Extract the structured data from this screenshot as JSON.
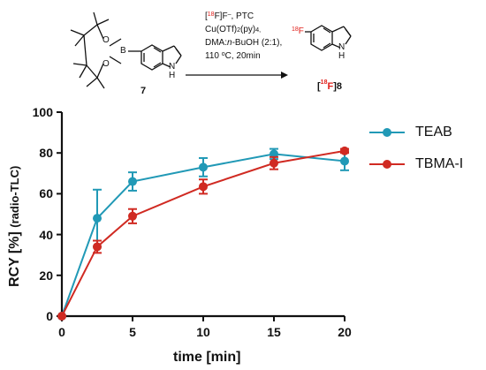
{
  "scheme": {
    "reactant_label": "7",
    "product_label_isotope": "18",
    "product_label_element": "F",
    "product_label_number": "8",
    "boron_atom": "B",
    "oxygen_atom": "O",
    "nitrogen_atom": "N",
    "hydrogen_atom": "H",
    "fluorine_mass": "18",
    "fluorine_atom": "F",
    "conditions": {
      "line1_open": "[",
      "line1_mass": "18",
      "line1_rest": "F]F",
      "line1_charge": "–",
      "line1_tail": ", PTC",
      "line2_main": "Cu(OTf)",
      "line2_sub1": "2",
      "line2_mid": "(py)",
      "line2_sub2": "4,",
      "line3_start": "DMA:",
      "line3_italic": "n",
      "line3_end": "-BuOH (2:1),",
      "line4_start": "110 ",
      "line4_deg": "o",
      "line4_end": "C, 20min"
    }
  },
  "chart_data": {
    "type": "line",
    "xlabel": "time [min]",
    "ylabel_main": "RCY [%]",
    "ylabel_sub": "(radio-TLC)",
    "xlim": [
      0,
      20
    ],
    "ylim": [
      0,
      100
    ],
    "xticks": [
      0,
      5,
      10,
      15,
      20
    ],
    "yticks": [
      0,
      20,
      40,
      60,
      80,
      100
    ],
    "legend_position": "right",
    "series": [
      {
        "name": "TEAB",
        "color": "#2199b6",
        "x": [
          0,
          2.5,
          5,
          10,
          15,
          20
        ],
        "y": [
          0,
          48,
          66,
          73,
          79.5,
          76
        ],
        "err": [
          0,
          14,
          4.5,
          4.5,
          2.5,
          4.5
        ]
      },
      {
        "name": "TBMA-I",
        "color": "#d02a22",
        "x": [
          0,
          2.5,
          5,
          10,
          15,
          20
        ],
        "y": [
          0,
          34,
          49,
          63.5,
          75,
          81
        ],
        "err": [
          0,
          3,
          3.5,
          3.5,
          3,
          1
        ]
      }
    ]
  }
}
